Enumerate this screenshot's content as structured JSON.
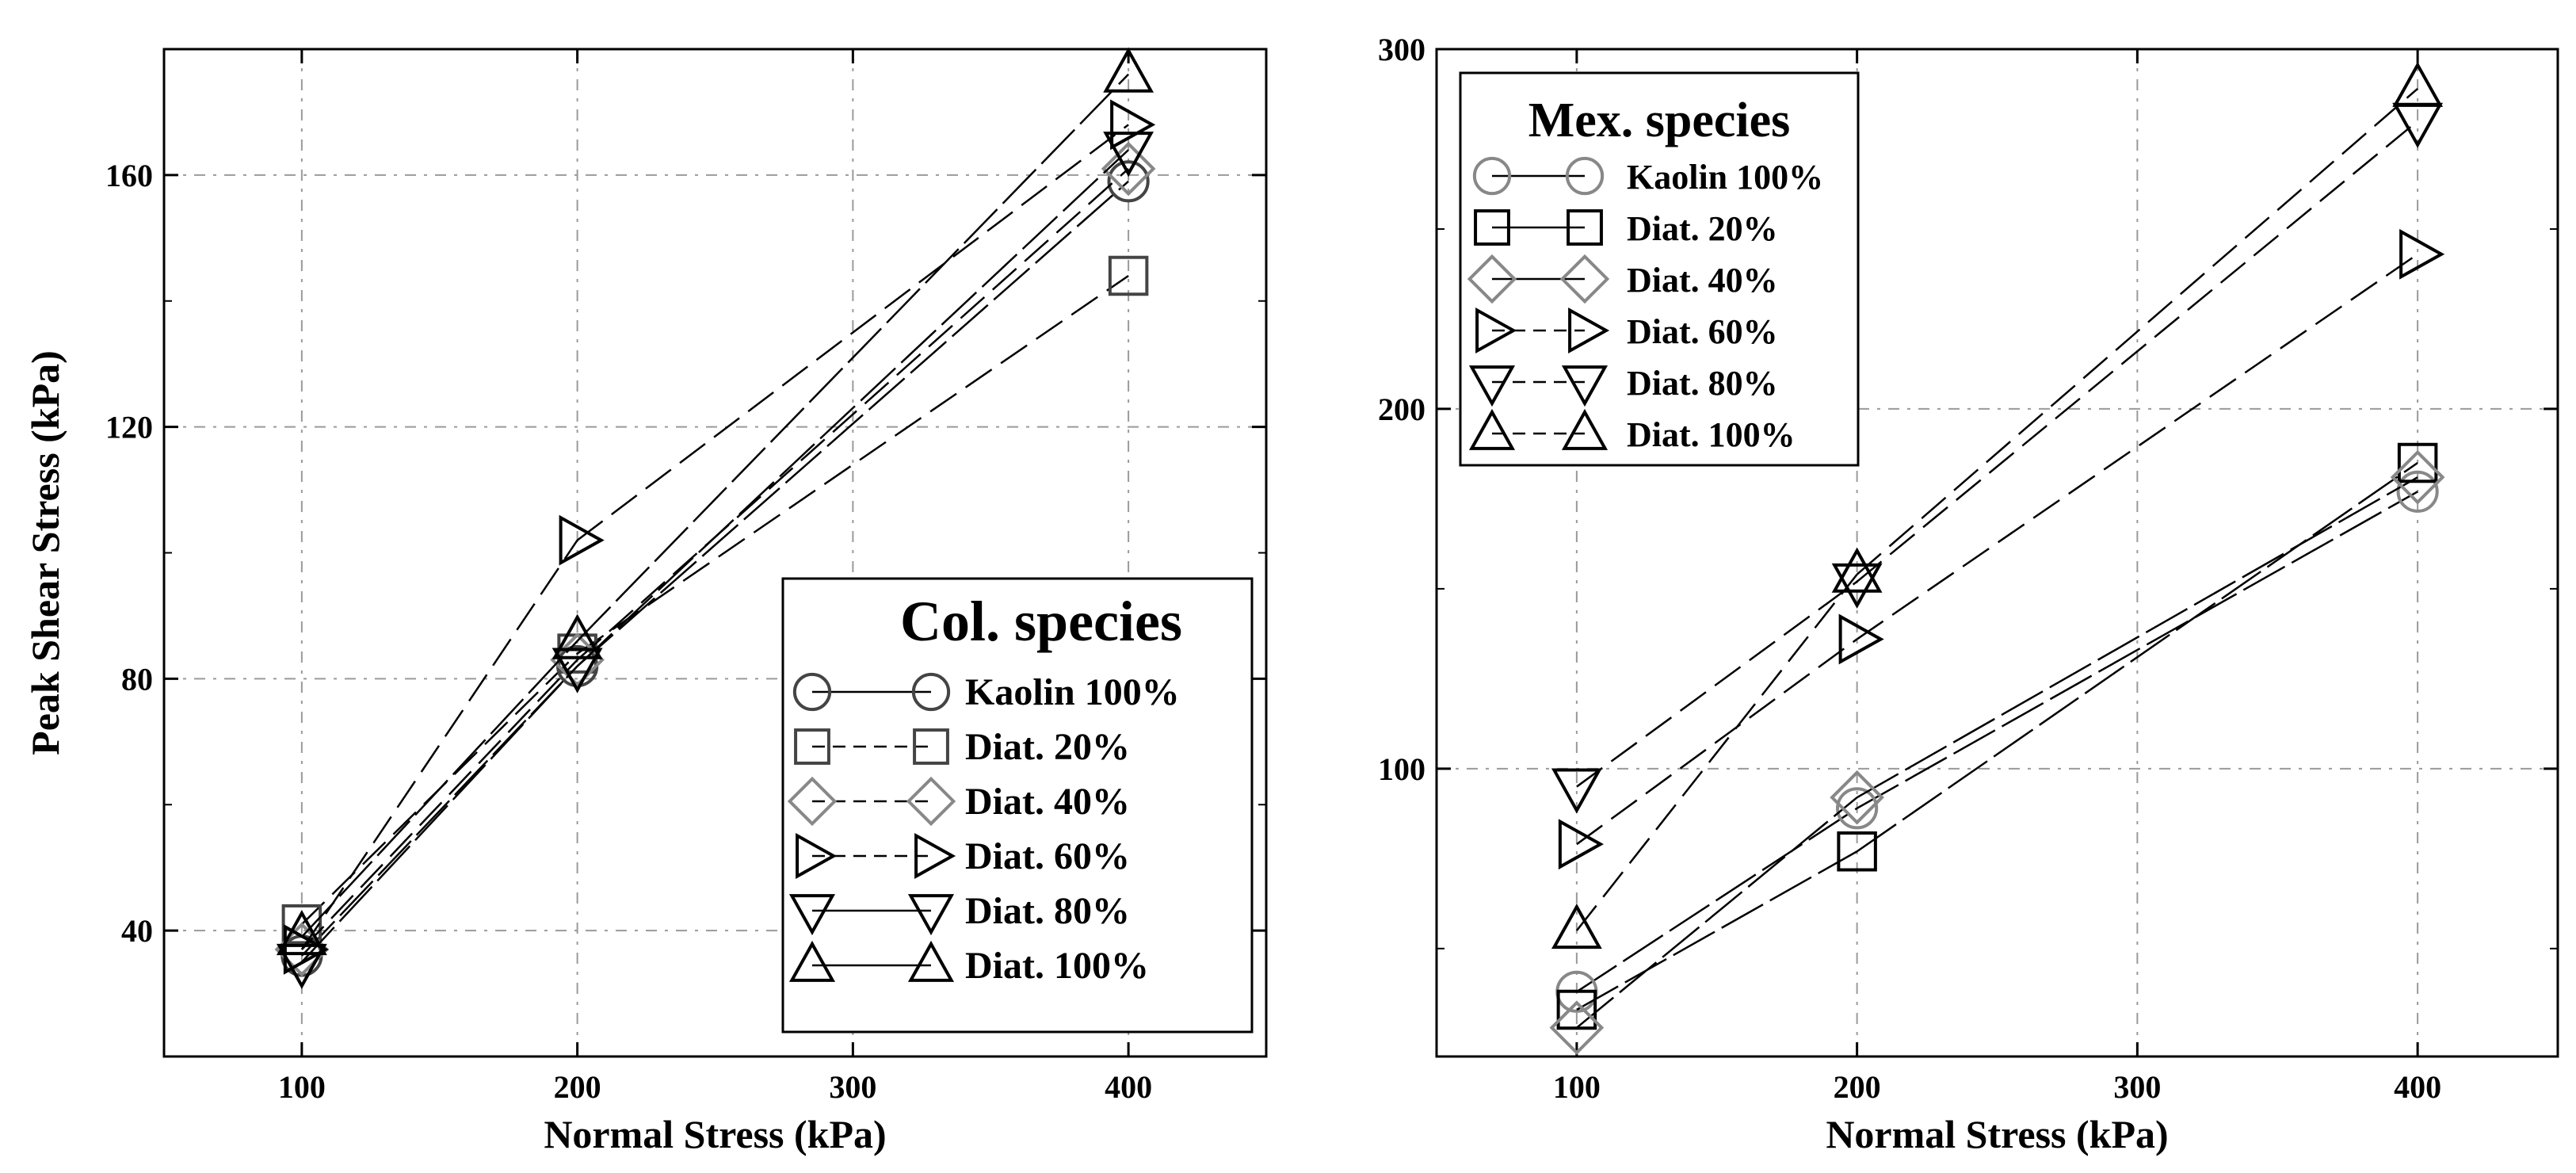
{
  "chart_data": [
    {
      "type": "line",
      "xlabel": "Normal Stress (kPa)",
      "ylabel": "Peak Shear Stress (kPa)",
      "xlim": [
        50,
        450
      ],
      "ylim": [
        20,
        180
      ],
      "xticks": [
        100,
        200,
        300,
        400
      ],
      "yticks": [
        40,
        80,
        120,
        160
      ],
      "grid": true,
      "legend": {
        "title": "Col. species",
        "position": "bottom-right"
      },
      "series": [
        {
          "name": "Kaolin 100%",
          "marker": "circle",
          "line": "solid",
          "color": "#444444",
          "x": [
            100,
            200,
            400
          ],
          "y": [
            36,
            82,
            159
          ]
        },
        {
          "name": "Diat. 20%",
          "marker": "square",
          "line": "dashed",
          "color": "#444444",
          "x": [
            100,
            200,
            400
          ],
          "y": [
            41,
            84,
            144
          ]
        },
        {
          "name": "Diat. 40%",
          "marker": "diamond",
          "line": "dashed",
          "color": "#888888",
          "x": [
            100,
            200,
            400
          ],
          "y": [
            37,
            83,
            161
          ]
        },
        {
          "name": "Diat. 60%",
          "marker": "triangle-right",
          "line": "dashed",
          "color": "#000000",
          "x": [
            100,
            200,
            400
          ],
          "y": [
            37,
            102,
            168
          ]
        },
        {
          "name": "Diat. 80%",
          "marker": "triangle-down",
          "line": "solid",
          "color": "#000000",
          "x": [
            100,
            200,
            400
          ],
          "y": [
            35,
            82,
            164
          ]
        },
        {
          "name": "Diat. 100%",
          "marker": "triangle-up",
          "line": "solid",
          "color": "#000000",
          "x": [
            100,
            200,
            400
          ],
          "y": [
            39,
            86,
            176
          ]
        }
      ]
    },
    {
      "type": "line",
      "xlabel": "Normal Stress (kPa)",
      "ylabel": "",
      "xlim": [
        50,
        450
      ],
      "ylim": [
        20,
        300
      ],
      "xticks": [
        100,
        200,
        300,
        400
      ],
      "yticks": [
        100,
        200,
        300
      ],
      "grid": true,
      "legend": {
        "title": "Mex. species",
        "position": "top-left"
      },
      "series": [
        {
          "name": "Kaolin 100%",
          "marker": "circle",
          "line": "solid",
          "color": "#888888",
          "x": [
            100,
            200,
            400
          ],
          "y": [
            38,
            89,
            177
          ]
        },
        {
          "name": "Diat. 20%",
          "marker": "square",
          "line": "solid",
          "color": "#000000",
          "x": [
            100,
            200,
            400
          ],
          "y": [
            33,
            77,
            185
          ]
        },
        {
          "name": "Diat. 40%",
          "marker": "diamond",
          "line": "solid",
          "color": "#888888",
          "x": [
            100,
            200,
            400
          ],
          "y": [
            28,
            92,
            181
          ]
        },
        {
          "name": "Diat. 60%",
          "marker": "triangle-right",
          "line": "dashed",
          "color": "#000000",
          "x": [
            100,
            200,
            400
          ],
          "y": [
            79,
            136,
            243
          ]
        },
        {
          "name": "Diat. 80%",
          "marker": "triangle-down",
          "line": "dashed",
          "color": "#000000",
          "x": [
            100,
            200,
            400
          ],
          "y": [
            95,
            152,
            280
          ]
        },
        {
          "name": "Diat. 100%",
          "marker": "triangle-up",
          "line": "dashed",
          "color": "#000000",
          "x": [
            100,
            200,
            400
          ],
          "y": [
            55,
            154,
            289
          ]
        }
      ]
    }
  ]
}
